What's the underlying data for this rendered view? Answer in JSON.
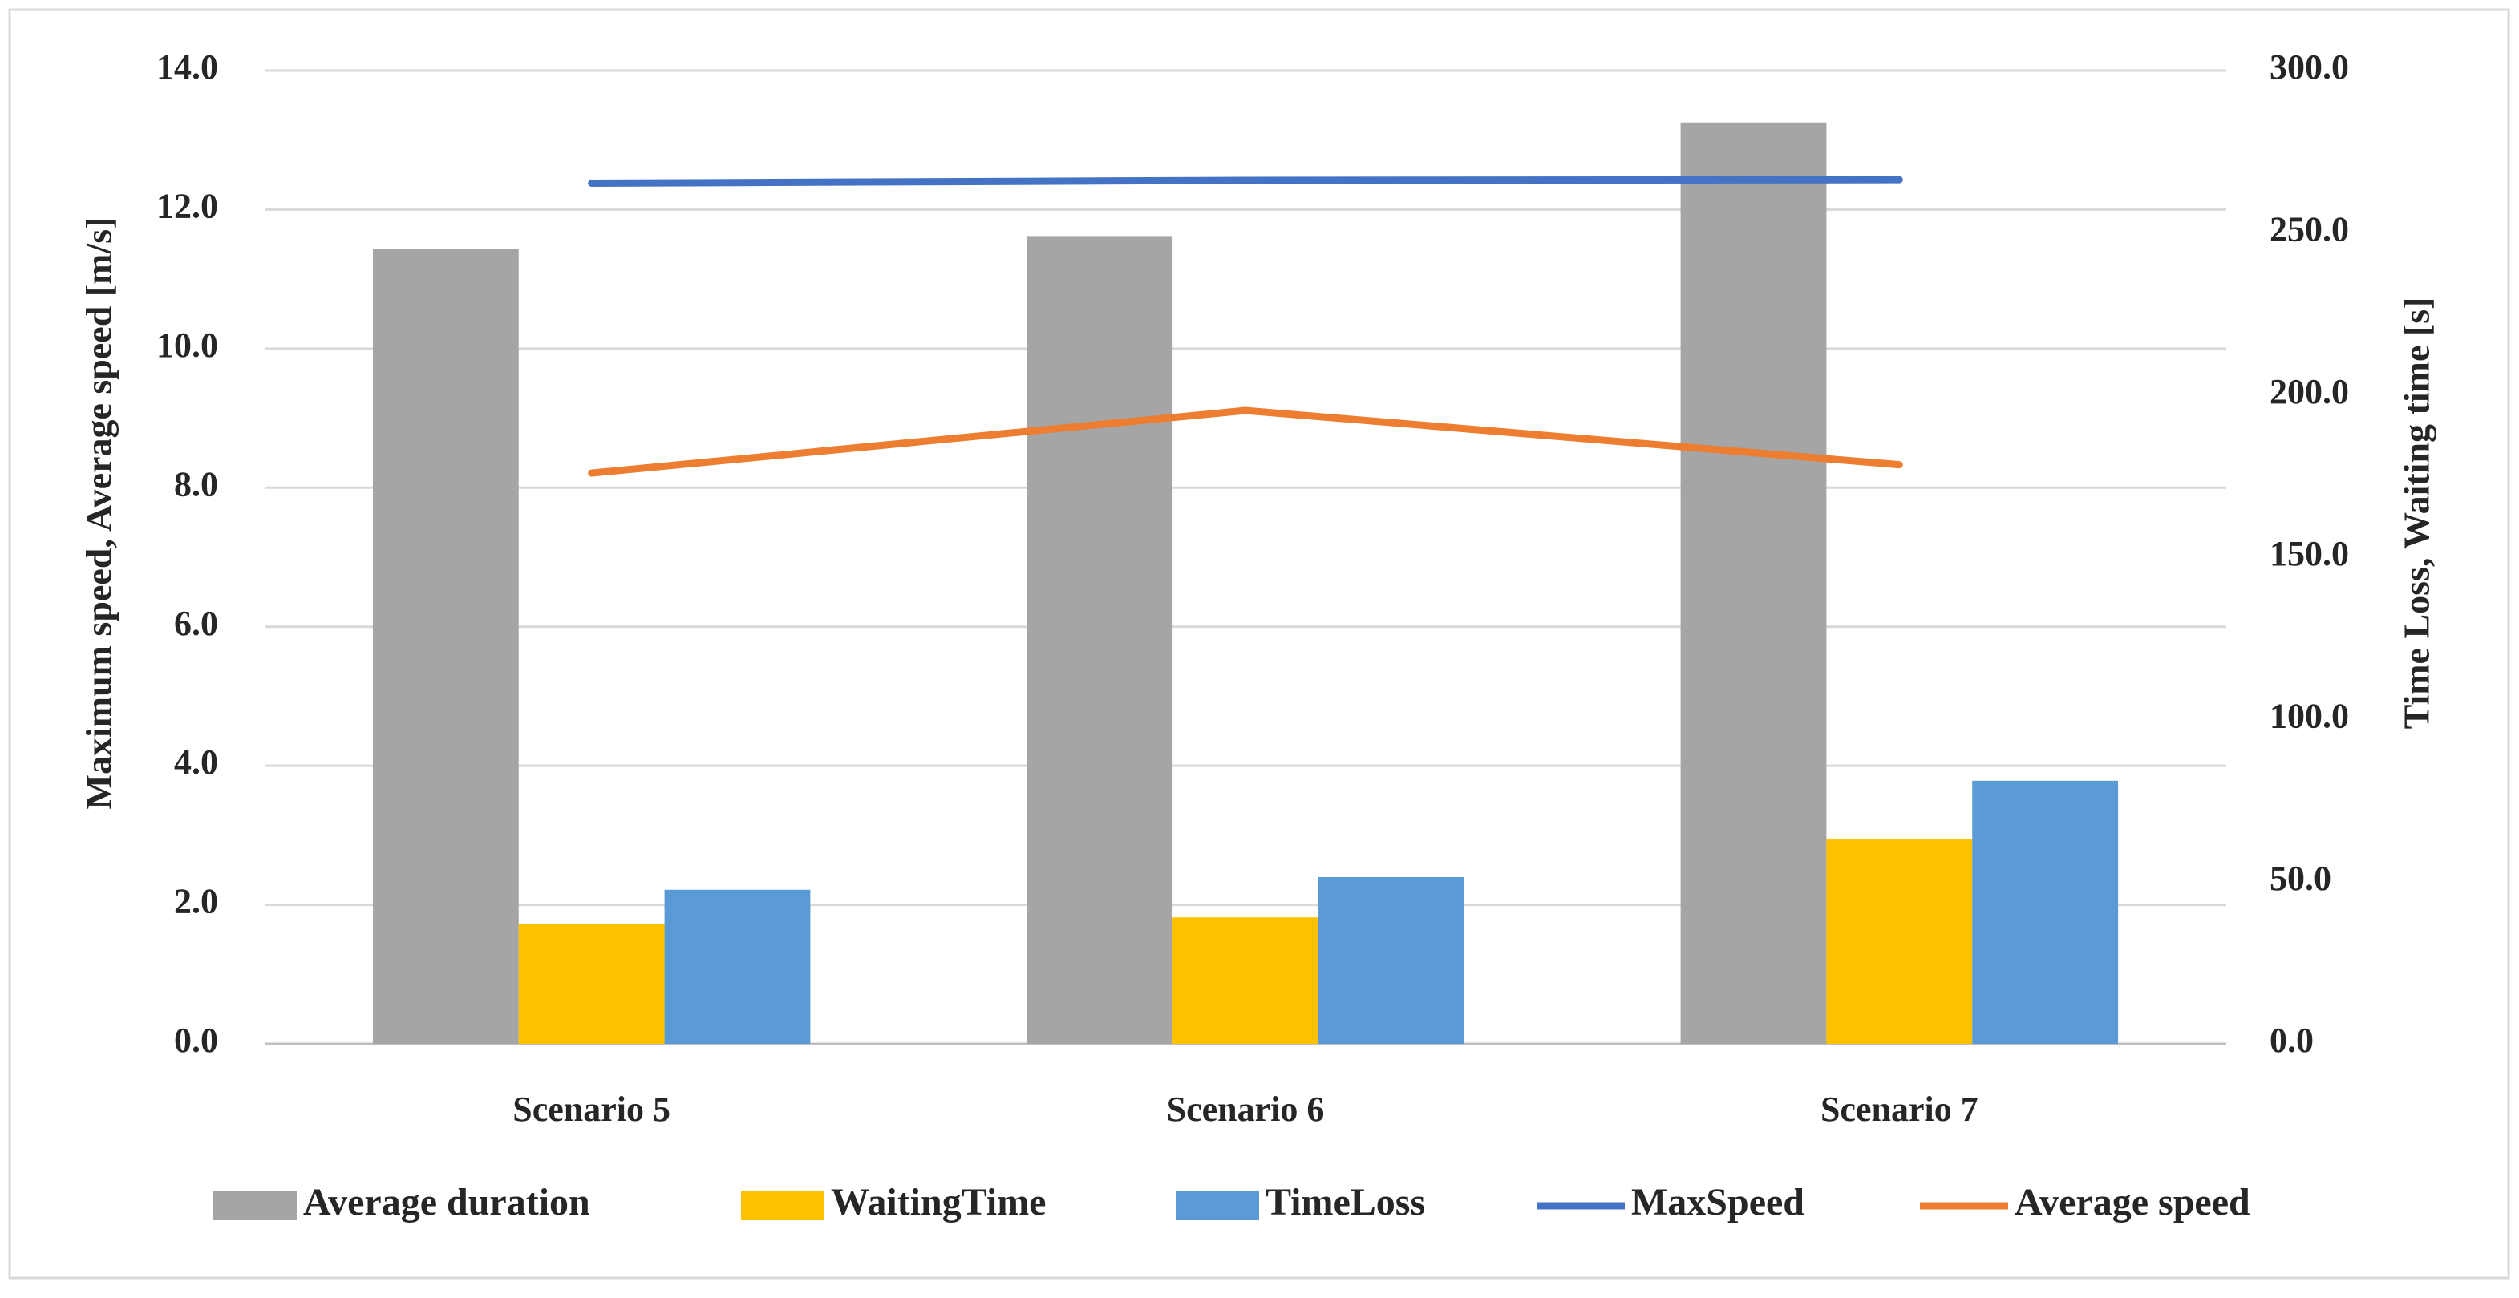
{
  "chart_data": {
    "type": "bar",
    "categories": [
      "Scenario 5",
      "Scenario 6",
      "Scenario 7"
    ],
    "y_label": "Maximum speed, Average speed [m/s]",
    "y2_label": "Time Loss, Waiting time [s]",
    "ylim": [
      0,
      14
    ],
    "yticks": [
      {
        "value": 0,
        "label": "0.0"
      },
      {
        "value": 2,
        "label": "2.0"
      },
      {
        "value": 4,
        "label": "4.0"
      },
      {
        "value": 6,
        "label": "6.0"
      },
      {
        "value": 8,
        "label": "8.0"
      },
      {
        "value": 10,
        "label": "10.0"
      },
      {
        "value": 12,
        "label": "12.0"
      },
      {
        "value": 14,
        "label": "14.0"
      }
    ],
    "y2lim": [
      0,
      300
    ],
    "y2ticks": [
      {
        "value": 0,
        "label": "0.0"
      },
      {
        "value": 50,
        "label": "50.0"
      },
      {
        "value": 100,
        "label": "100.0"
      },
      {
        "value": 150,
        "label": "150.0"
      },
      {
        "value": 200,
        "label": "200.0"
      },
      {
        "value": 250,
        "label": "250.0"
      },
      {
        "value": 300,
        "label": "300.0"
      }
    ],
    "grid": true,
    "legend": "bottom",
    "series": [
      {
        "name": "Average duration",
        "type": "bar",
        "axis": "y2",
        "color": "#a5a5a5",
        "values": [
          245,
          249,
          284
        ]
      },
      {
        "name": "WaitingTime",
        "type": "bar",
        "axis": "y2",
        "color": "#ffc000",
        "values": [
          37,
          39,
          63
        ]
      },
      {
        "name": "TimeLoss",
        "type": "bar",
        "axis": "y2",
        "color": "#5b9bd5",
        "values": [
          47.5,
          51.4,
          81.1
        ]
      },
      {
        "name": "MaxSpeed",
        "type": "line",
        "color": "#4472c4",
        "values": [
          12.38,
          12.42,
          12.43
        ]
      },
      {
        "name": "Average speed",
        "type": "line",
        "color": "#ed7d31",
        "values": [
          8.21,
          9.11,
          8.33
        ]
      }
    ]
  }
}
